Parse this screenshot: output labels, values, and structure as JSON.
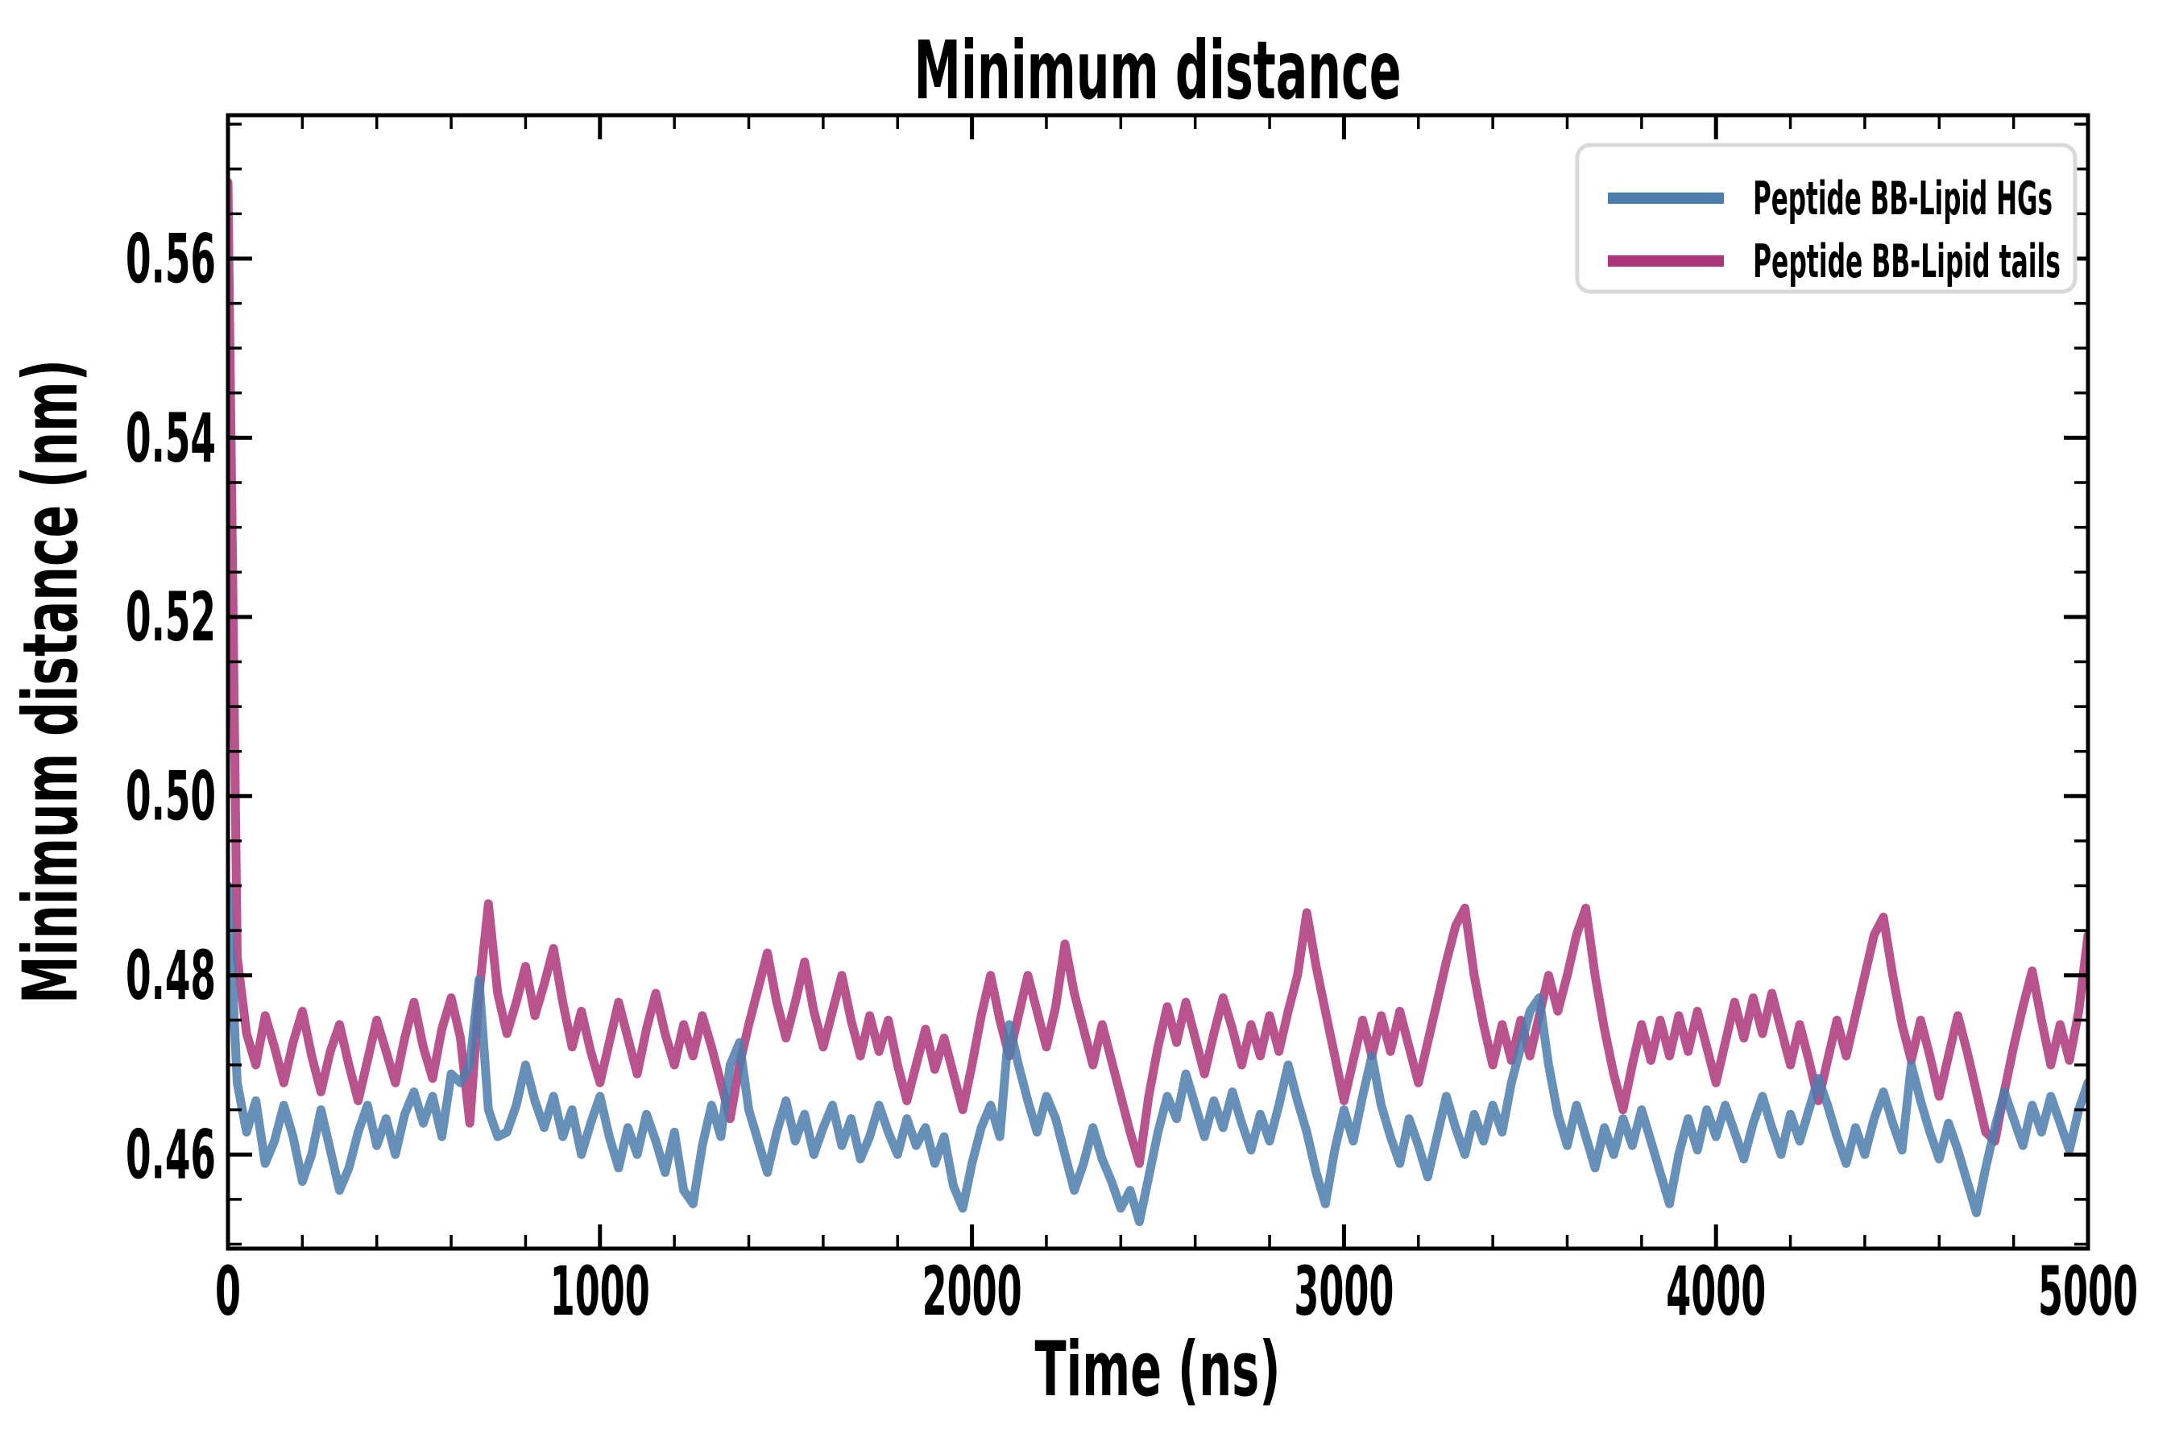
{
  "title": "Minimum distance",
  "axes": {
    "xlabel": "Time (ns)",
    "ylabel": "Minimum distance (nm)"
  },
  "legend": {
    "entries": [
      {
        "label": "Peptide BB-Lipid HGs",
        "color": "#4c7dab"
      },
      {
        "label": "Peptide BB-Lipid tails",
        "color": "#ad3579"
      }
    ]
  },
  "chart_data": {
    "type": "line",
    "title": "Minimum distance",
    "xlabel": "Time (ns)",
    "ylabel": "Minimum distance (nm)",
    "xlim": [
      0,
      5000
    ],
    "ylim": [
      0.4495,
      0.576
    ],
    "grid": false,
    "legend_position": "upper right",
    "x_ticks_major": [
      0,
      1000,
      2000,
      3000,
      4000,
      5000
    ],
    "x_tick_labels": [
      "0",
      "1000",
      "2000",
      "3000",
      "4000",
      "5000"
    ],
    "x_minor_step": 200,
    "y_ticks_major": [
      0.46,
      0.48,
      0.5,
      0.52,
      0.54,
      0.56
    ],
    "y_tick_labels": [
      "0.46",
      "0.48",
      "0.50",
      "0.52",
      "0.54",
      "0.56"
    ],
    "y_minor_step": 0.005,
    "t_start": 0,
    "t_step": 25,
    "line_width": 11,
    "line_alpha": 0.85,
    "series": [
      {
        "name": "Peptide BB-Lipid HGs",
        "color": "#4c7dab",
        "values": [
          0.49,
          0.468,
          0.4625,
          0.466,
          0.459,
          0.4615,
          0.4655,
          0.462,
          0.457,
          0.46,
          0.465,
          0.4605,
          0.456,
          0.4585,
          0.4625,
          0.4655,
          0.461,
          0.464,
          0.46,
          0.4645,
          0.467,
          0.4635,
          0.4665,
          0.462,
          0.469,
          0.468,
          0.47,
          0.4795,
          0.465,
          0.462,
          0.4625,
          0.4655,
          0.47,
          0.466,
          0.463,
          0.4665,
          0.462,
          0.465,
          0.46,
          0.4635,
          0.4665,
          0.462,
          0.4585,
          0.463,
          0.46,
          0.4645,
          0.4615,
          0.458,
          0.4625,
          0.456,
          0.4545,
          0.461,
          0.4655,
          0.462,
          0.47,
          0.4725,
          0.465,
          0.4615,
          0.458,
          0.4625,
          0.466,
          0.4615,
          0.4645,
          0.46,
          0.463,
          0.4655,
          0.461,
          0.464,
          0.4595,
          0.462,
          0.4655,
          0.4625,
          0.46,
          0.464,
          0.461,
          0.463,
          0.459,
          0.462,
          0.4565,
          0.454,
          0.459,
          0.463,
          0.4655,
          0.462,
          0.4745,
          0.47,
          0.466,
          0.4625,
          0.4665,
          0.464,
          0.46,
          0.456,
          0.459,
          0.463,
          0.4595,
          0.457,
          0.454,
          0.456,
          0.4525,
          0.4575,
          0.4625,
          0.4665,
          0.464,
          0.469,
          0.4655,
          0.462,
          0.466,
          0.463,
          0.467,
          0.4635,
          0.4605,
          0.4645,
          0.4615,
          0.4655,
          0.47,
          0.466,
          0.4625,
          0.458,
          0.4545,
          0.4605,
          0.465,
          0.4615,
          0.4665,
          0.471,
          0.4655,
          0.462,
          0.459,
          0.464,
          0.461,
          0.4575,
          0.462,
          0.4665,
          0.463,
          0.46,
          0.4645,
          0.4615,
          0.4655,
          0.4625,
          0.468,
          0.472,
          0.476,
          0.4775,
          0.47,
          0.4645,
          0.461,
          0.4655,
          0.462,
          0.4585,
          0.463,
          0.46,
          0.464,
          0.461,
          0.465,
          0.4615,
          0.458,
          0.4545,
          0.46,
          0.464,
          0.4605,
          0.465,
          0.462,
          0.4655,
          0.4625,
          0.4595,
          0.4635,
          0.4665,
          0.463,
          0.46,
          0.4645,
          0.4615,
          0.465,
          0.4685,
          0.4655,
          0.462,
          0.459,
          0.463,
          0.46,
          0.464,
          0.467,
          0.4635,
          0.4605,
          0.47,
          0.466,
          0.4625,
          0.4595,
          0.4635,
          0.4605,
          0.457,
          0.4535,
          0.4585,
          0.463,
          0.467,
          0.464,
          0.461,
          0.4655,
          0.4625,
          0.4665,
          0.4635,
          0.4605,
          0.465,
          0.468
        ]
      },
      {
        "name": "Peptide BB-Lipid tails",
        "color": "#ad3579",
        "values": [
          0.5685,
          0.482,
          0.4735,
          0.47,
          0.4755,
          0.472,
          0.468,
          0.4725,
          0.476,
          0.471,
          0.467,
          0.4715,
          0.4745,
          0.47,
          0.466,
          0.4705,
          0.475,
          0.4715,
          0.468,
          0.473,
          0.477,
          0.472,
          0.4685,
          0.474,
          0.4775,
          0.473,
          0.4635,
          0.478,
          0.488,
          0.478,
          0.4735,
          0.477,
          0.481,
          0.4755,
          0.479,
          0.483,
          0.477,
          0.472,
          0.476,
          0.4715,
          0.468,
          0.4725,
          0.477,
          0.473,
          0.469,
          0.474,
          0.478,
          0.4735,
          0.47,
          0.4745,
          0.471,
          0.4755,
          0.472,
          0.468,
          0.464,
          0.47,
          0.4745,
          0.4785,
          0.4825,
          0.477,
          0.473,
          0.477,
          0.4815,
          0.476,
          0.472,
          0.476,
          0.48,
          0.475,
          0.471,
          0.4755,
          0.4715,
          0.475,
          0.47,
          0.466,
          0.47,
          0.474,
          0.4695,
          0.473,
          0.469,
          0.465,
          0.47,
          0.4755,
          0.48,
          0.475,
          0.471,
          0.4755,
          0.48,
          0.476,
          0.472,
          0.4765,
          0.4835,
          0.478,
          0.474,
          0.47,
          0.4745,
          0.4705,
          0.4665,
          0.4625,
          0.459,
          0.4665,
          0.472,
          0.4765,
          0.4725,
          0.477,
          0.473,
          0.469,
          0.4735,
          0.4775,
          0.474,
          0.47,
          0.4745,
          0.471,
          0.4755,
          0.4715,
          0.476,
          0.48,
          0.487,
          0.481,
          0.476,
          0.471,
          0.466,
          0.4705,
          0.475,
          0.471,
          0.4755,
          0.4715,
          0.476,
          0.472,
          0.468,
          0.4725,
          0.477,
          0.4815,
          0.4855,
          0.4875,
          0.48,
          0.4745,
          0.47,
          0.4745,
          0.4705,
          0.475,
          0.471,
          0.4755,
          0.48,
          0.476,
          0.48,
          0.4845,
          0.4875,
          0.48,
          0.474,
          0.469,
          0.465,
          0.47,
          0.4745,
          0.4705,
          0.475,
          0.471,
          0.4755,
          0.4715,
          0.476,
          0.472,
          0.468,
          0.4725,
          0.477,
          0.473,
          0.4775,
          0.4735,
          0.478,
          0.474,
          0.47,
          0.4745,
          0.4705,
          0.466,
          0.4705,
          0.475,
          0.471,
          0.4755,
          0.48,
          0.4845,
          0.4865,
          0.48,
          0.4745,
          0.4705,
          0.475,
          0.471,
          0.4665,
          0.471,
          0.4755,
          0.4715,
          0.467,
          0.4625,
          0.4615,
          0.467,
          0.472,
          0.4765,
          0.4805,
          0.475,
          0.47,
          0.4745,
          0.4705,
          0.476,
          0.4845
        ]
      }
    ]
  }
}
